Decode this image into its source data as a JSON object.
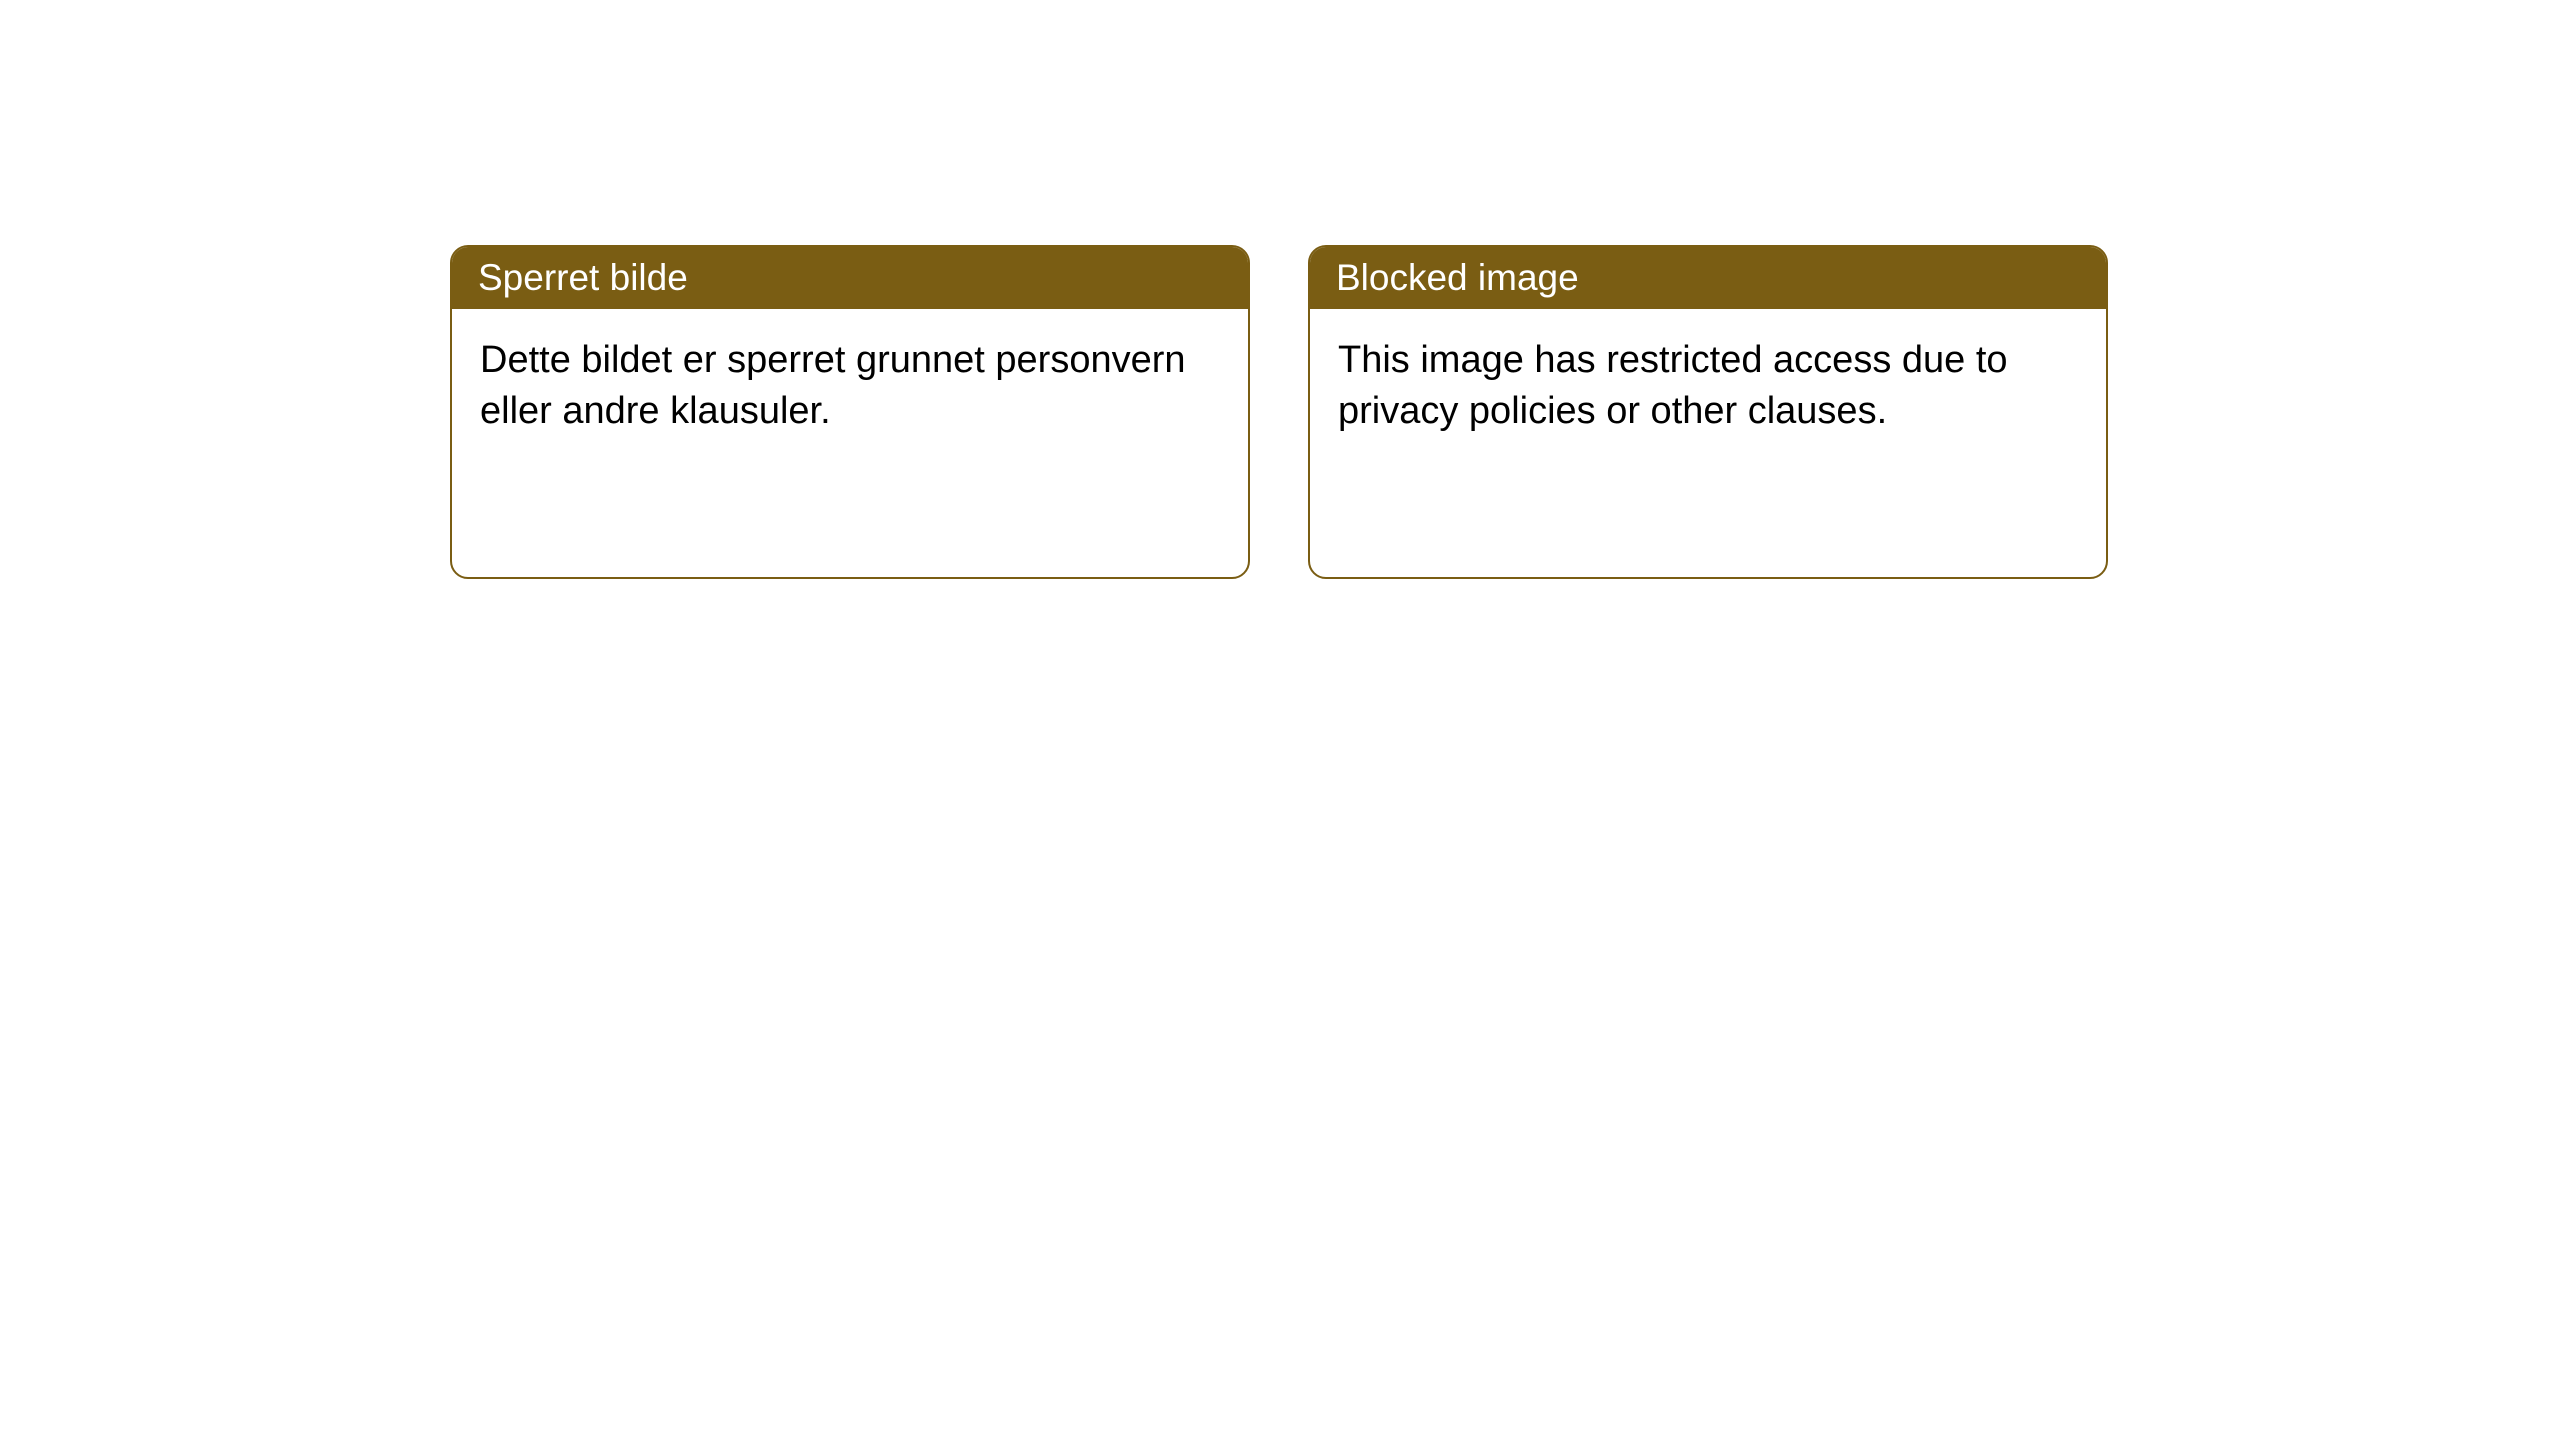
{
  "cards": [
    {
      "header": "Sperret bilde",
      "body": "Dette bildet er sperret grunnet personvern eller andre klausuler."
    },
    {
      "header": "Blocked image",
      "body": "This image has restricted access due to privacy policies or other clauses."
    }
  ],
  "style": {
    "header_bg_color": "#7a5d13",
    "header_text_color": "#ffffff",
    "card_border_color": "#7a5d13",
    "card_bg_color": "#ffffff",
    "body_text_color": "#000000",
    "page_bg_color": "#ffffff",
    "card_border_radius": 18,
    "header_fontsize": 37,
    "body_fontsize": 38
  }
}
